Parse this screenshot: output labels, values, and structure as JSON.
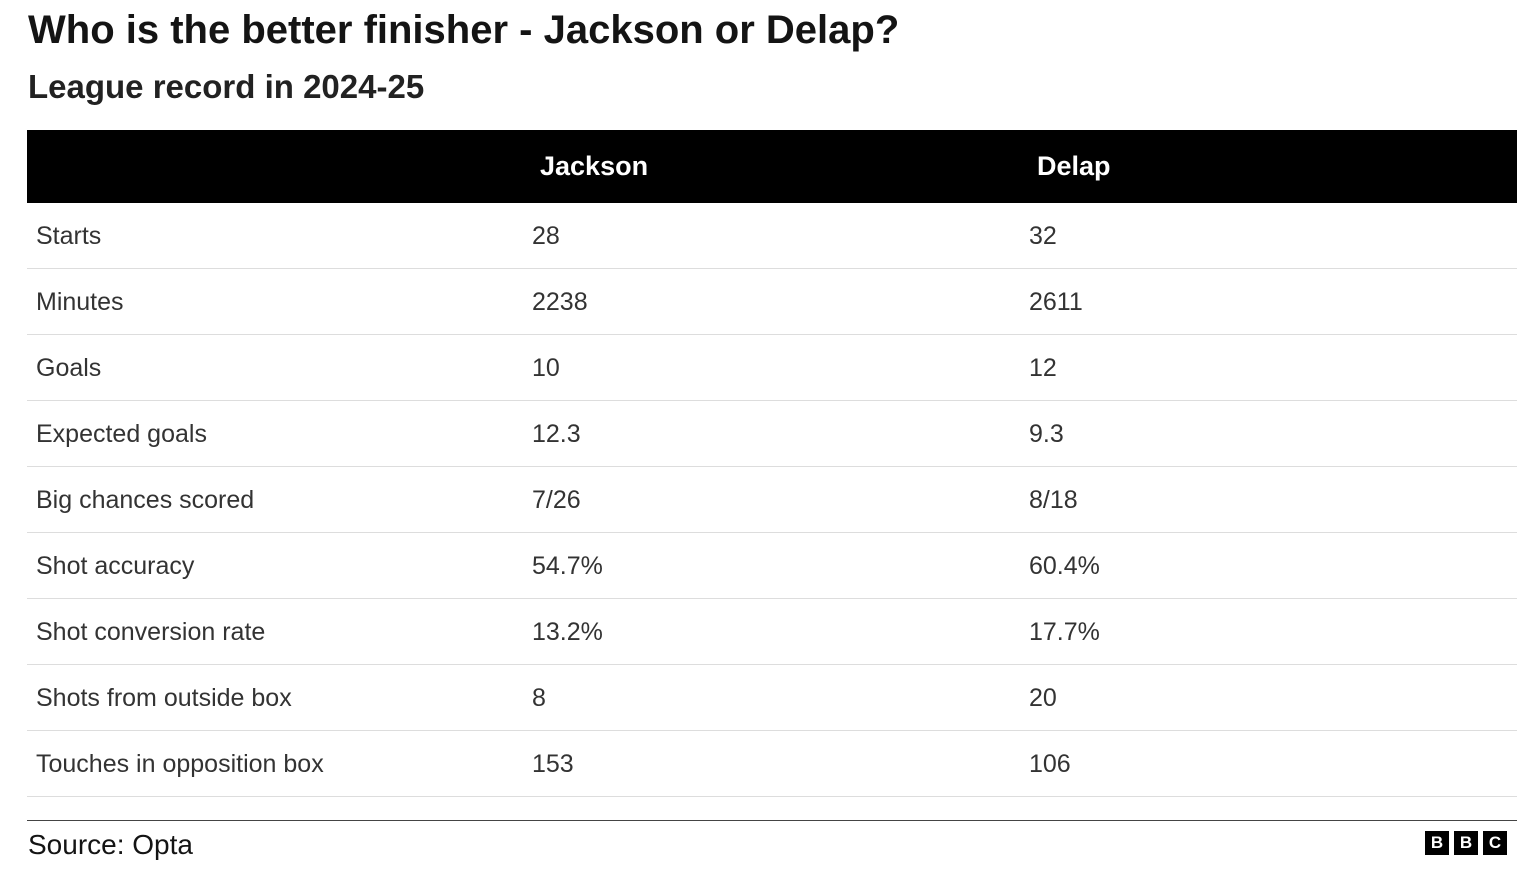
{
  "header": {
    "title": "Who is the better finisher - Jackson or Delap?",
    "subtitle": "League record in 2024-25"
  },
  "table": {
    "columns": [
      "Jackson",
      "Delap"
    ],
    "rows": [
      [
        "Starts",
        "28",
        "32"
      ],
      [
        "Minutes",
        "2238",
        "2611"
      ],
      [
        "Goals",
        "10",
        "12"
      ],
      [
        "Expected goals",
        "12.3",
        "9.3"
      ],
      [
        "Big chances scored",
        "7/26",
        "8/18"
      ],
      [
        "Shot accuracy",
        "54.7%",
        "60.4%"
      ],
      [
        "Shot conversion rate",
        "13.2%",
        "17.7%"
      ],
      [
        "Shots from outside box",
        "8",
        "20"
      ],
      [
        "Touches in opposition box",
        "153",
        "106"
      ]
    ]
  },
  "footer": {
    "source": "Source: Opta",
    "logo": [
      "B",
      "B",
      "C"
    ]
  }
}
